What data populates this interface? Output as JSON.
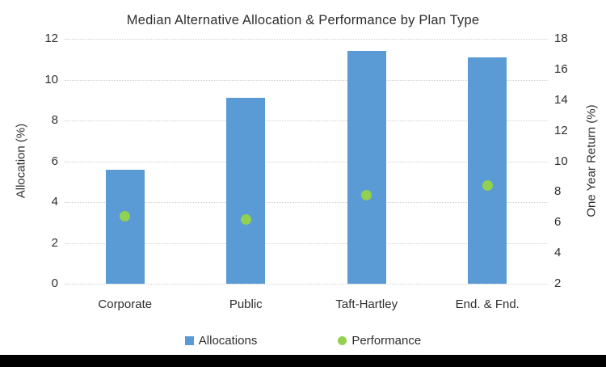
{
  "page": {
    "background": "#FFFFFF",
    "footer_bar_color": "#000000"
  },
  "chart_data": {
    "type": "combo",
    "title": "Median Alternative Allocation & Performance by Plan Type",
    "categories": [
      "Corporate",
      "Public",
      "Taft-Hartley",
      "End. & Fnd."
    ],
    "series": [
      {
        "name": "Allocations",
        "type": "bar",
        "axis": "left",
        "color": "#5B9BD5",
        "values": [
          5.6,
          9.1,
          11.4,
          11.1
        ]
      },
      {
        "name": "Performance",
        "type": "scatter",
        "axis": "right",
        "color": "#92D050",
        "values": [
          6.4,
          6.2,
          7.8,
          8.4
        ]
      }
    ],
    "left_axis": {
      "label": "Allocation (%)",
      "min": 0,
      "max": 12,
      "ticks": [
        0,
        2,
        4,
        6,
        8,
        10,
        12
      ]
    },
    "right_axis": {
      "label": "One Year Return (%)",
      "min": 2,
      "max": 18,
      "ticks": [
        2,
        4,
        6,
        8,
        10,
        12,
        14,
        16,
        18
      ]
    },
    "grid": {
      "horizontal": true,
      "style": "dotted",
      "color": "#CFCFCF"
    },
    "legend": {
      "position": "bottom",
      "entries": [
        "Allocations",
        "Performance"
      ]
    }
  }
}
